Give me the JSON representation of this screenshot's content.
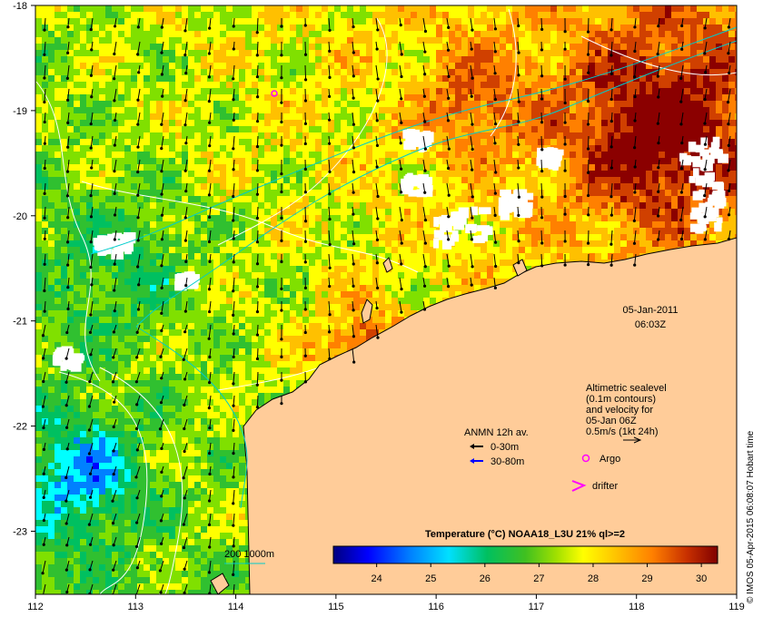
{
  "map": {
    "lon_ticks": [
      "112",
      "113",
      "114",
      "115",
      "116",
      "117",
      "118",
      "119"
    ],
    "lat_ticks": [
      "-18",
      "-19",
      "-20",
      "-21",
      "-22",
      "-23"
    ],
    "lon_range": [
      112,
      119
    ],
    "lat_range": [
      -23.6,
      -18
    ]
  },
  "timestamp": {
    "date": "05-Jan-2011",
    "time": "06:03Z"
  },
  "altimetry_note": {
    "line1": "Altimetric sealevel",
    "line2": "(0.1m contours)",
    "line3": "and velocity for",
    "line4": "05-Jan 06Z",
    "line5": "0.5m/s (1kt 24h)"
  },
  "anmn_legend": {
    "title": "ANMN 12h av.",
    "item1": "0-30m",
    "item2": "30-80m",
    "colors": {
      "item1": "#000000",
      "item2": "#0000ff"
    }
  },
  "markers": {
    "argo": "Argo",
    "drifter": "drifter",
    "color": "#ff00ff"
  },
  "colorbar": {
    "title": "Temperature (°C) NOAA18_L3U 21% ql>=2",
    "ticks": [
      "24",
      "25",
      "26",
      "27",
      "28",
      "29",
      "30"
    ],
    "range": [
      23.2,
      30.3
    ],
    "colors": [
      "#00007f",
      "#0000ff",
      "#0080ff",
      "#00ffff",
      "#00c060",
      "#30c030",
      "#80e000",
      "#ffff00",
      "#ffc000",
      "#ff8000",
      "#d04000",
      "#8b0000"
    ]
  },
  "bathymetry_legend": "200  1000m",
  "credit": "© IMOS 05-Apr-2015 06:08:07 Hobart time",
  "colors": {
    "land": "#ffcc99",
    "contour": "#ffffff",
    "isobath": "#00cccc"
  }
}
